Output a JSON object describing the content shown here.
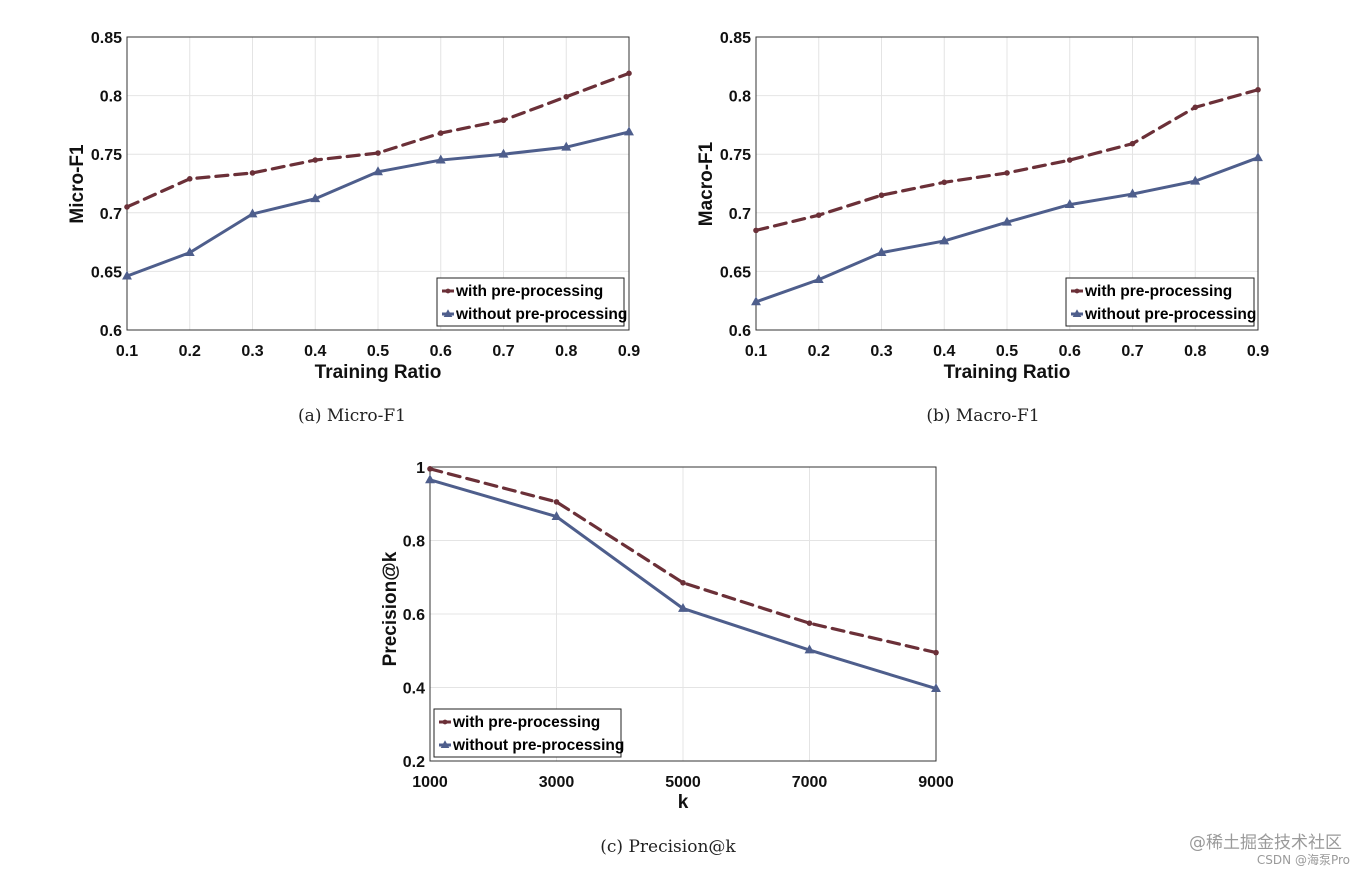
{
  "colors": {
    "with": "#6b3038",
    "without": "#4e5e8c"
  },
  "chart_data": [
    {
      "type": "line",
      "caption": "(a) Micro-F1",
      "xlabel": "Training Ratio",
      "ylabel": "Micro-F1",
      "x": [
        0.1,
        0.2,
        0.3,
        0.4,
        0.5,
        0.6,
        0.7,
        0.8,
        0.9
      ],
      "xticks": [
        "0.1",
        "0.2",
        "0.3",
        "0.4",
        "0.5",
        "0.6",
        "0.7",
        "0.8",
        "0.9"
      ],
      "xlim": [
        0.1,
        0.9
      ],
      "yticks": [
        "0.6",
        "0.65",
        "0.7",
        "0.75",
        "0.8",
        "0.85"
      ],
      "ylim": [
        0.6,
        0.85
      ],
      "series": [
        {
          "name": "with pre-processing",
          "values": [
            0.705,
            0.729,
            0.734,
            0.745,
            0.751,
            0.768,
            0.779,
            0.799,
            0.819
          ]
        },
        {
          "name": "without pre-processing",
          "values": [
            0.646,
            0.666,
            0.699,
            0.712,
            0.735,
            0.745,
            0.75,
            0.756,
            0.769
          ]
        }
      ],
      "legend": "bottom-right"
    },
    {
      "type": "line",
      "caption": "(b) Macro-F1",
      "xlabel": "Training Ratio",
      "ylabel": "Macro-F1",
      "x": [
        0.1,
        0.2,
        0.3,
        0.4,
        0.5,
        0.6,
        0.7,
        0.8,
        0.9
      ],
      "xticks": [
        "0.1",
        "0.2",
        "0.3",
        "0.4",
        "0.5",
        "0.6",
        "0.7",
        "0.8",
        "0.9"
      ],
      "xlim": [
        0.1,
        0.9
      ],
      "yticks": [
        "0.6",
        "0.65",
        "0.7",
        "0.75",
        "0.8",
        "0.85"
      ],
      "ylim": [
        0.6,
        0.85
      ],
      "series": [
        {
          "name": "with pre-processing",
          "values": [
            0.685,
            0.698,
            0.715,
            0.726,
            0.734,
            0.745,
            0.759,
            0.79,
            0.805
          ]
        },
        {
          "name": "without pre-processing",
          "values": [
            0.624,
            0.643,
            0.666,
            0.676,
            0.692,
            0.707,
            0.716,
            0.727,
            0.747
          ]
        }
      ],
      "legend": "bottom-right"
    },
    {
      "type": "line",
      "caption": "(c) Precision@k",
      "xlabel": "k",
      "ylabel": "Precision@k",
      "x": [
        1000,
        3000,
        5000,
        7000,
        9000
      ],
      "xticks": [
        "1000",
        "3000",
        "5000",
        "7000",
        "9000"
      ],
      "xlim": [
        1000,
        9000
      ],
      "yticks": [
        "0.2",
        "0.4",
        "0.6",
        "0.8",
        "1"
      ],
      "ylim": [
        0.2,
        1.0
      ],
      "series": [
        {
          "name": "with pre-processing",
          "values": [
            0.995,
            0.905,
            0.685,
            0.575,
            0.495
          ]
        },
        {
          "name": "without pre-processing",
          "values": [
            0.965,
            0.865,
            0.615,
            0.502,
            0.397
          ]
        }
      ],
      "legend": "bottom-left"
    }
  ],
  "watermark": {
    "line1": "@稀土掘金技术社区",
    "line2": "CSDN @海泵Pro"
  }
}
